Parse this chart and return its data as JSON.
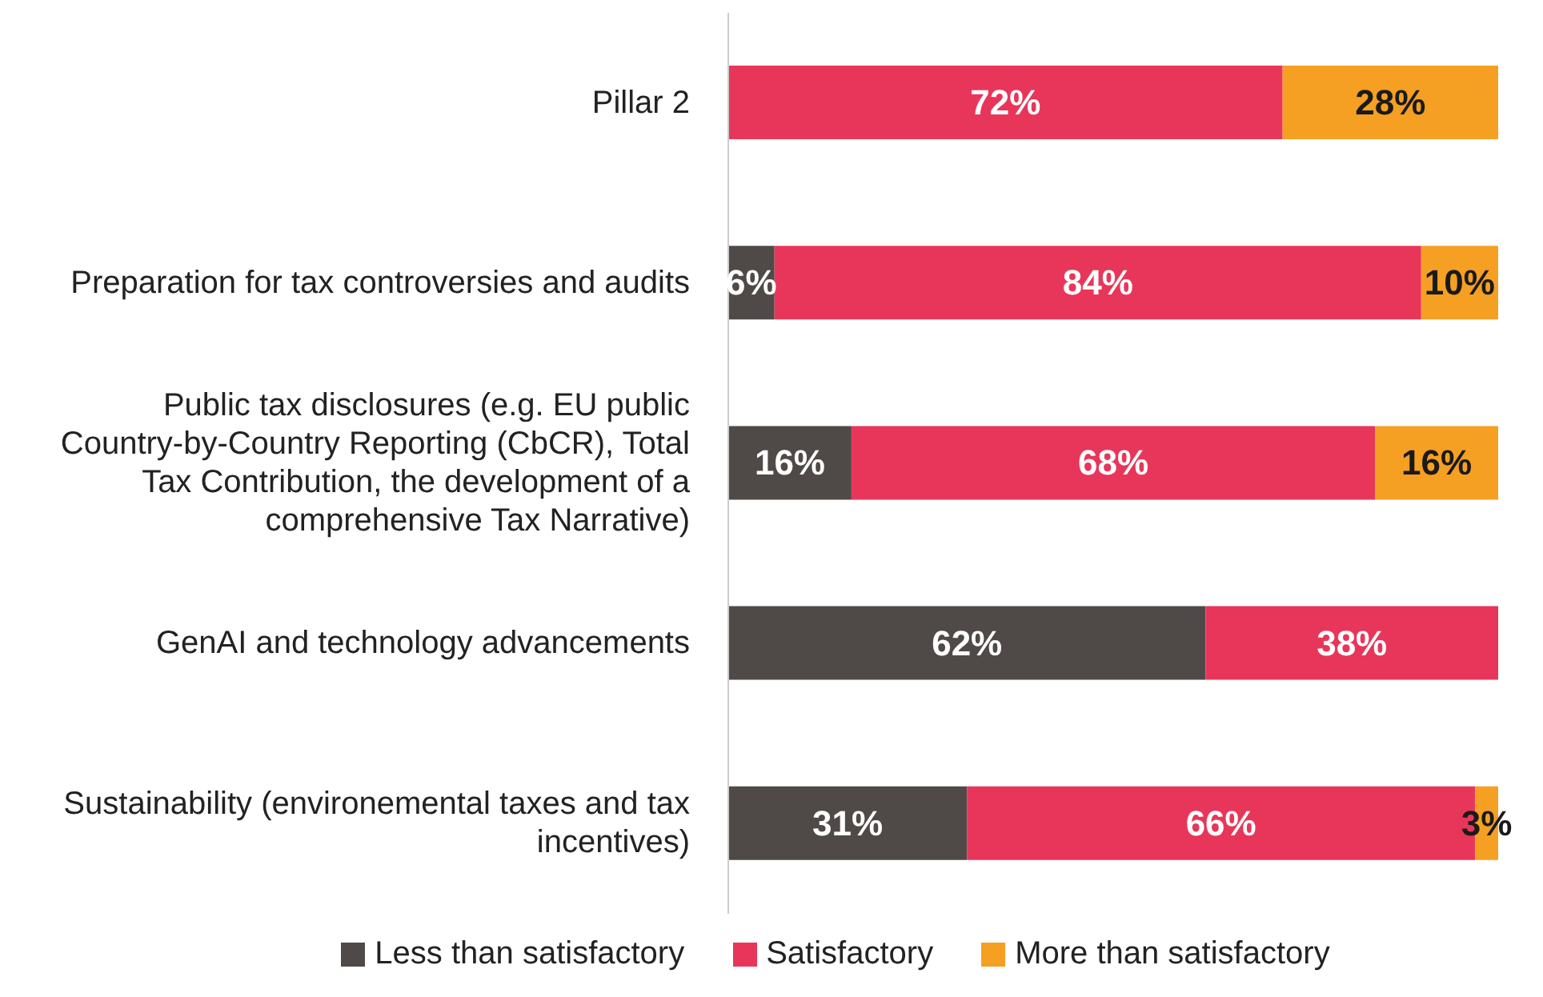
{
  "chart_data": {
    "type": "bar",
    "orientation": "horizontal",
    "stacked": true,
    "categories": [
      "Pillar 2",
      "Preparation for tax controversies and audits",
      "Public tax disclosures (e.g. EU public Country-by-Country Reporting (CbCR), Total Tax Contribution, the development of a comprehensive Tax Narrative)",
      "GenAI and technology advancements",
      "Sustainability (environemental taxes and tax incentives)"
    ],
    "series": [
      {
        "name": "Less than satisfactory",
        "color": "#4f4a47",
        "values": [
          null,
          6,
          16,
          62,
          31
        ],
        "value_labels": [
          null,
          "6%",
          "16%",
          "62%",
          "31%"
        ]
      },
      {
        "name": "Satisfactory",
        "color": "#e8365a",
        "values": [
          72,
          84,
          68,
          38,
          66
        ],
        "value_labels": [
          "72%",
          "84%",
          "68%",
          "38%",
          "66%"
        ]
      },
      {
        "name": "More than satisfactory",
        "color": "#f59f23",
        "values": [
          28,
          10,
          16,
          null,
          3
        ],
        "value_labels": [
          "28%",
          "10%",
          "16%",
          null,
          "3%"
        ]
      }
    ],
    "legend": "bottom",
    "tick_labels": "y"
  }
}
